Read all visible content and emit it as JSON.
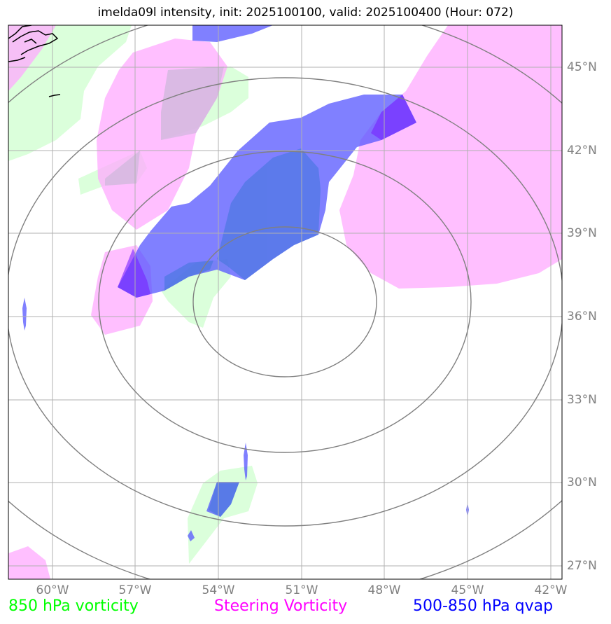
{
  "title": "imelda09l intensity, init: 2025100100, valid: 2025100400 (Hour: 072)",
  "lat_labels": [
    "45°N",
    "42°N",
    "39°N",
    "36°N",
    "33°N",
    "30°N",
    "27°N"
  ],
  "lon_labels": [
    "60°W",
    "57°W",
    "54°W",
    "51°W",
    "48°W",
    "45°W",
    "42°W"
  ],
  "legend": [
    {
      "label": "850 hPa vorticity",
      "color": "#00ff00"
    },
    {
      "label": "Steering Vorticity",
      "color": "#ff00ff"
    },
    {
      "label": "500-850 hPa qvap",
      "color": "#0000ff"
    }
  ],
  "colors": {
    "vort850_fill": "#ccffcc",
    "steering_fill": "#ffaaff",
    "qvap_fill": "#6666ff",
    "grid": "#b0b0b0",
    "contour": "#808080",
    "coast": "#000000"
  }
}
